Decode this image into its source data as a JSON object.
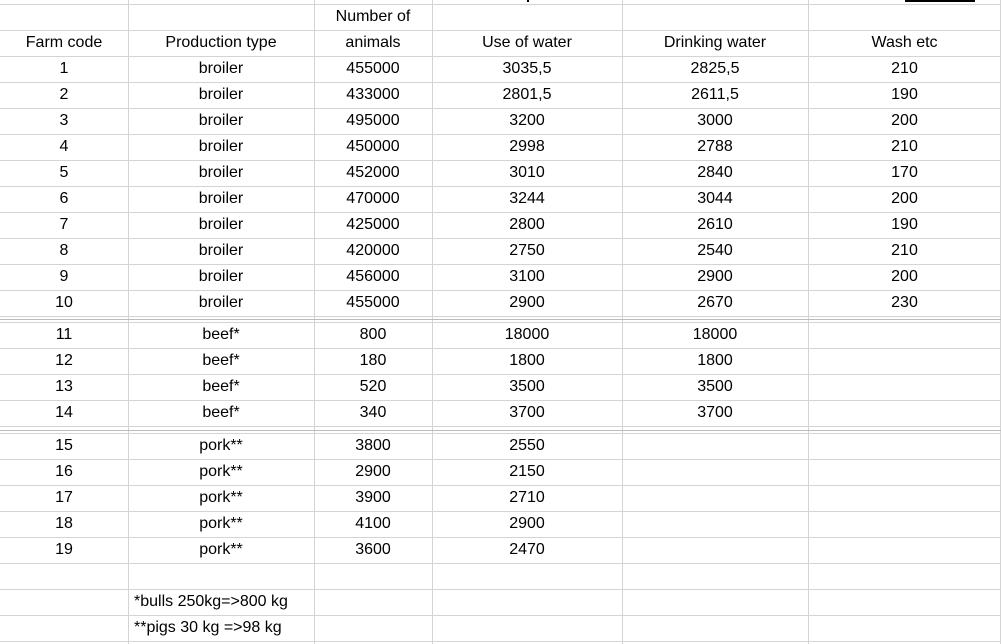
{
  "headers": {
    "farm_code": "Farm code",
    "production_type": "Production type",
    "number_of_line1": "Number of",
    "number_of_line2": "animals",
    "use_of_water": "Use of water",
    "drinking_water": "Drinking water",
    "wash": "Wash etc"
  },
  "rows": [
    [
      "1",
      "broiler",
      "455000",
      "3035,5",
      "2825,5",
      "210"
    ],
    [
      "2",
      "broiler",
      "433000",
      "2801,5",
      "2611,5",
      "190"
    ],
    [
      "3",
      "broiler",
      "495000",
      "3200",
      "3000",
      "200"
    ],
    [
      "4",
      "broiler",
      "450000",
      "2998",
      "2788",
      "210"
    ],
    [
      "5",
      "broiler",
      "452000",
      "3010",
      "2840",
      "170"
    ],
    [
      "6",
      "broiler",
      "470000",
      "3244",
      "3044",
      "200"
    ],
    [
      "7",
      "broiler",
      "425000",
      "2800",
      "2610",
      "190"
    ],
    [
      "8",
      "broiler",
      "420000",
      "2750",
      "2540",
      "210"
    ],
    [
      "9",
      "broiler",
      "456000",
      "3100",
      "2900",
      "200"
    ],
    [
      "10",
      "broiler",
      "455000",
      "2900",
      "2670",
      "230"
    ],
    [
      "11",
      "beef*",
      "800",
      "18000",
      "18000",
      ""
    ],
    [
      "12",
      "beef*",
      "180",
      "1800",
      "1800",
      ""
    ],
    [
      "13",
      "beef*",
      "520",
      "3500",
      "3500",
      ""
    ],
    [
      "14",
      "beef*",
      "340",
      "3700",
      "3700",
      ""
    ],
    [
      "15",
      "pork**",
      "3800",
      "2550",
      "",
      ""
    ],
    [
      "16",
      "pork**",
      "2900",
      "2150",
      "",
      ""
    ],
    [
      "17",
      "pork**",
      "3900",
      "2710",
      "",
      ""
    ],
    [
      "18",
      "pork**",
      "4100",
      "2900",
      "",
      ""
    ],
    [
      "19",
      "pork**",
      "3600",
      "2470",
      "",
      ""
    ]
  ],
  "footnotes": [
    "*bulls 250kg=>800 kg",
    "**pigs 30 kg =>98 kg"
  ]
}
